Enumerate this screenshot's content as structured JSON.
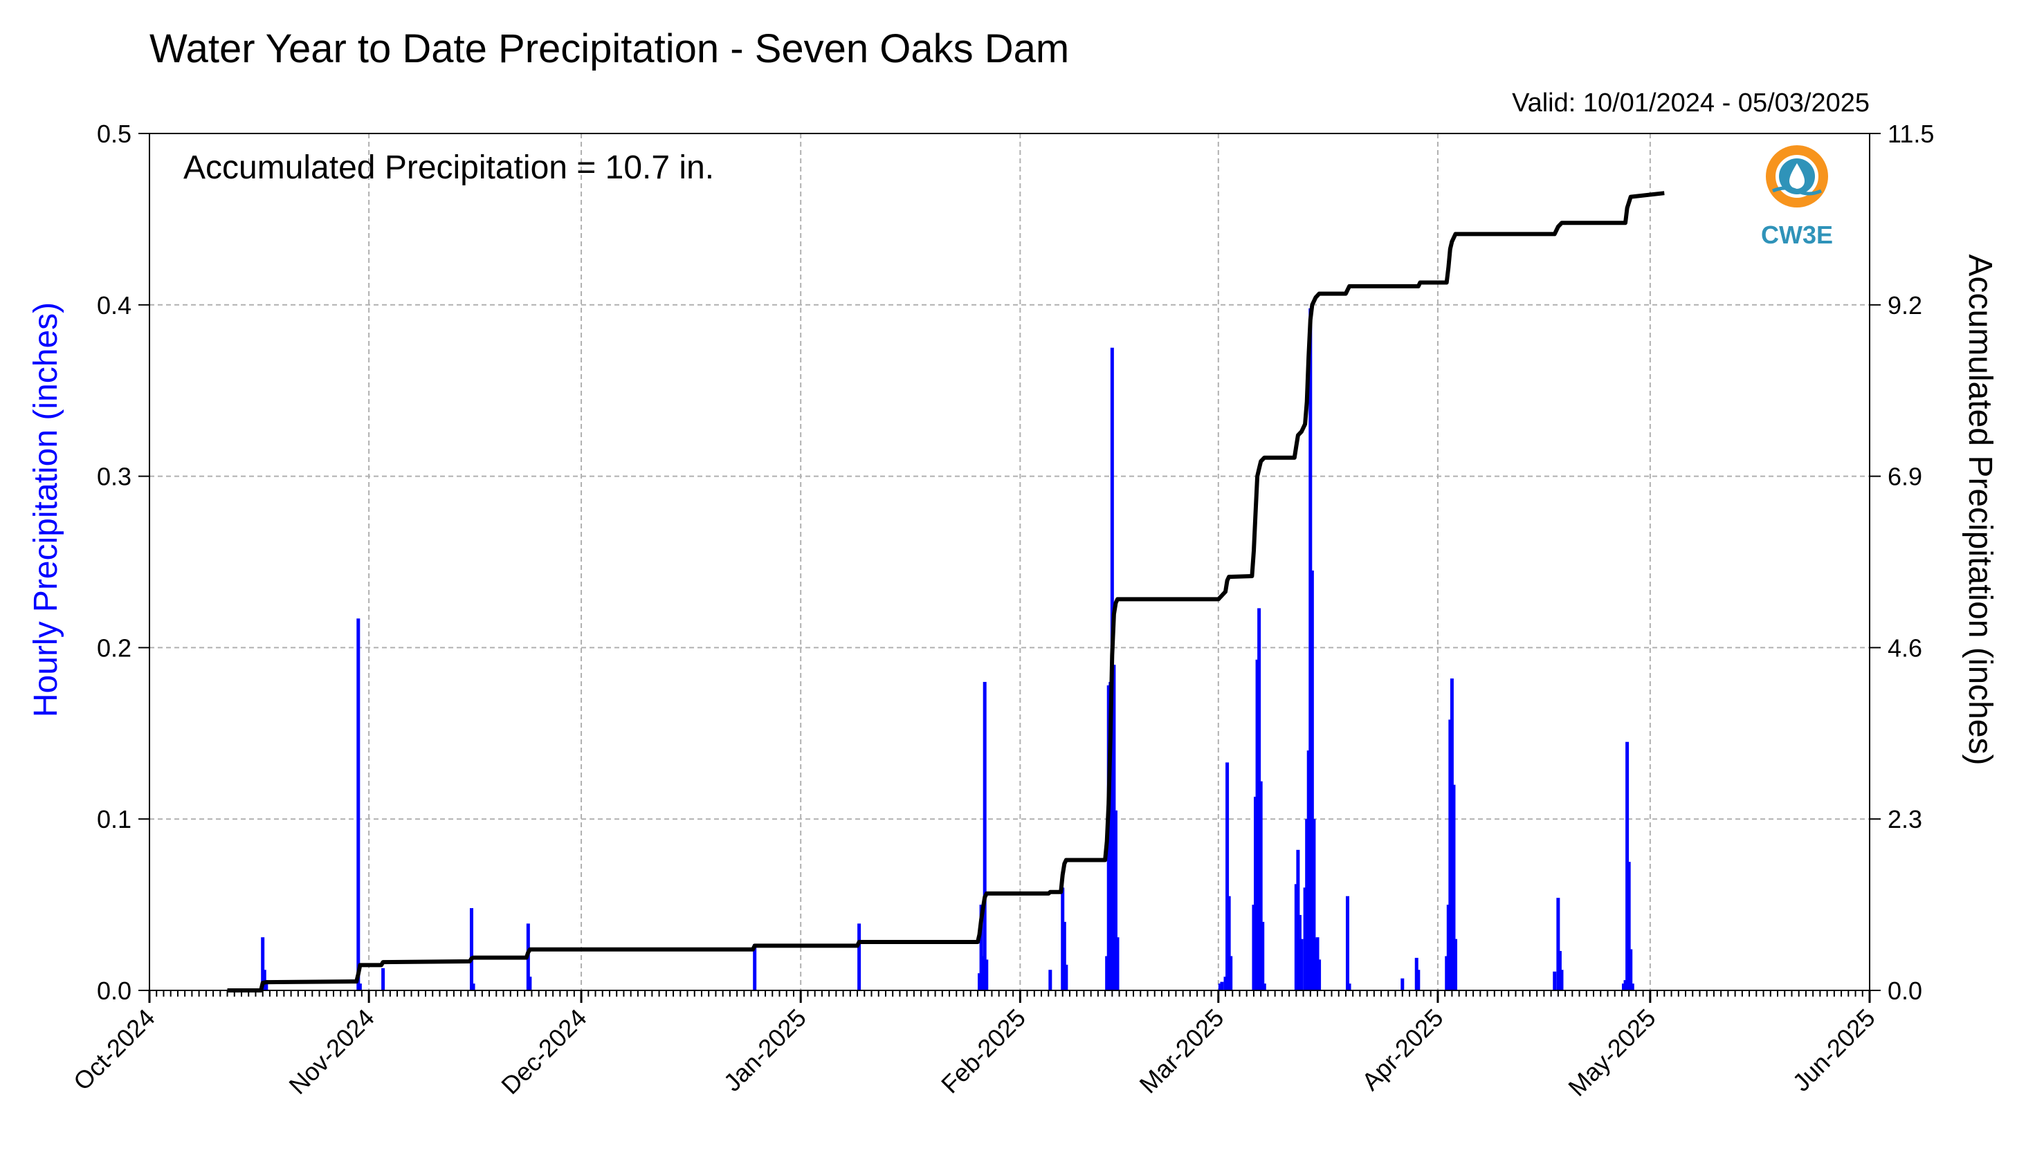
{
  "chart_data": {
    "type": "bar",
    "title": "Water Year to Date Precipitation - Seven Oaks Dam",
    "subtitle": "Valid: 10/01/2024 - 05/03/2025",
    "annotation": "Accumulated Precipitation = 10.7 in.",
    "logo_text": "CW3E",
    "ylabel_left": "Hourly Precipitation (inches)",
    "ylabel_right": "Accumulated Precipitation (inches)",
    "y_left_lim": [
      0,
      0.5
    ],
    "y_left_ticks": [
      "0.0",
      "0.1",
      "0.2",
      "0.3",
      "0.4",
      "0.5"
    ],
    "y_right_lim": [
      0,
      11.5
    ],
    "y_right_ticks": [
      "0.0",
      "2.3",
      "4.6",
      "6.9",
      "9.2",
      "11.5"
    ],
    "x_range": [
      "2024-10-01",
      "2025-06-01"
    ],
    "x_ticks": [
      {
        "date": "2024-10-01",
        "label": "Oct-2024"
      },
      {
        "date": "2024-11-01",
        "label": "Nov-2024"
      },
      {
        "date": "2024-12-01",
        "label": "Dec-2024"
      },
      {
        "date": "2025-01-01",
        "label": "Jan-2025"
      },
      {
        "date": "2025-02-01",
        "label": "Feb-2025"
      },
      {
        "date": "2025-03-01",
        "label": "Mar-2025"
      },
      {
        "date": "2025-04-01",
        "label": "Apr-2025"
      },
      {
        "date": "2025-05-01",
        "label": "May-2025"
      },
      {
        "date": "2025-06-01",
        "label": "Jun-2025"
      }
    ],
    "grid": true,
    "colors": {
      "hourly": "#0000ff",
      "accumulated": "#000000",
      "grid": "#b0b0b0",
      "logo": "#2f93b9",
      "logo_ring": "#f7941d"
    },
    "series": [
      {
        "name": "Hourly Precipitation",
        "axis": "left",
        "type": "bar",
        "points": [
          [
            "2024-10-17T00",
            0.031
          ],
          [
            "2024-10-17T06",
            0.012
          ],
          [
            "2024-10-17T12",
            0.006
          ],
          [
            "2024-10-30T12",
            0.217
          ],
          [
            "2024-10-30T18",
            0.004
          ],
          [
            "2024-11-03T00",
            0.013
          ],
          [
            "2024-11-15T12",
            0.048
          ],
          [
            "2024-11-15T18",
            0.004
          ],
          [
            "2024-11-23T12",
            0.039
          ],
          [
            "2024-11-23T18",
            0.008
          ],
          [
            "2024-12-25T12",
            0.027
          ],
          [
            "2025-01-09T06",
            0.039
          ],
          [
            "2025-01-26T06",
            0.01
          ],
          [
            "2025-01-26T12",
            0.05
          ],
          [
            "2025-01-26T18",
            0.02
          ],
          [
            "2025-01-27T00",
            0.18
          ],
          [
            "2025-01-27T06",
            0.018
          ],
          [
            "2025-02-05T06",
            0.012
          ],
          [
            "2025-02-07T00",
            0.06
          ],
          [
            "2025-02-07T06",
            0.04
          ],
          [
            "2025-02-07T12",
            0.015
          ],
          [
            "2025-02-13T06",
            0.02
          ],
          [
            "2025-02-13T12",
            0.178
          ],
          [
            "2025-02-13T18",
            0.18
          ],
          [
            "2025-02-14T00",
            0.375
          ],
          [
            "2025-02-14T06",
            0.19
          ],
          [
            "2025-02-14T12",
            0.105
          ],
          [
            "2025-02-14T18",
            0.031
          ],
          [
            "2025-03-01T06",
            0.004
          ],
          [
            "2025-03-01T12",
            0.005
          ],
          [
            "2025-03-02T00",
            0.008
          ],
          [
            "2025-03-02T06",
            0.133
          ],
          [
            "2025-03-02T12",
            0.055
          ],
          [
            "2025-03-02T18",
            0.02
          ],
          [
            "2025-03-06T00",
            0.05
          ],
          [
            "2025-03-06T06",
            0.113
          ],
          [
            "2025-03-06T12",
            0.193
          ],
          [
            "2025-03-06T18",
            0.223
          ],
          [
            "2025-03-07T00",
            0.122
          ],
          [
            "2025-03-07T06",
            0.04
          ],
          [
            "2025-03-07T12",
            0.004
          ],
          [
            "2025-03-12T00",
            0.062
          ],
          [
            "2025-03-12T06",
            0.082
          ],
          [
            "2025-03-12T12",
            0.044
          ],
          [
            "2025-03-12T18",
            0.03
          ],
          [
            "2025-03-13T06",
            0.06
          ],
          [
            "2025-03-13T12",
            0.1
          ],
          [
            "2025-03-13T18",
            0.14
          ],
          [
            "2025-03-14T00",
            0.398
          ],
          [
            "2025-03-14T06",
            0.245
          ],
          [
            "2025-03-14T12",
            0.1
          ],
          [
            "2025-03-14T18",
            0.03
          ],
          [
            "2025-03-15T00",
            0.031
          ],
          [
            "2025-03-15T06",
            0.018
          ],
          [
            "2025-03-19T06",
            0.055
          ],
          [
            "2025-03-19T12",
            0.004
          ],
          [
            "2025-03-27T00",
            0.007
          ],
          [
            "2025-03-29T00",
            0.019
          ],
          [
            "2025-03-29T06",
            0.012
          ],
          [
            "2025-04-02T06",
            0.02
          ],
          [
            "2025-04-02T12",
            0.05
          ],
          [
            "2025-04-02T18",
            0.158
          ],
          [
            "2025-04-03T00",
            0.182
          ],
          [
            "2025-04-03T06",
            0.12
          ],
          [
            "2025-04-03T12",
            0.03
          ],
          [
            "2025-04-17T12",
            0.011
          ],
          [
            "2025-04-18T00",
            0.054
          ],
          [
            "2025-04-18T06",
            0.023
          ],
          [
            "2025-04-18T12",
            0.012
          ],
          [
            "2025-04-27T06",
            0.004
          ],
          [
            "2025-04-27T12",
            0.006
          ],
          [
            "2025-04-27T18",
            0.145
          ],
          [
            "2025-04-28T00",
            0.075
          ],
          [
            "2025-04-28T06",
            0.024
          ],
          [
            "2025-04-28T12",
            0.004
          ]
        ]
      },
      {
        "name": "Accumulated Precipitation",
        "axis": "right",
        "type": "line",
        "points": [
          [
            "2024-10-12T00",
            0.0
          ],
          [
            "2024-10-16T18",
            0.0
          ],
          [
            "2024-10-17T00",
            0.1
          ],
          [
            "2024-10-17T12",
            0.11
          ],
          [
            "2024-10-30T06",
            0.12
          ],
          [
            "2024-10-30T12",
            0.22
          ],
          [
            "2024-10-30T18",
            0.34
          ],
          [
            "2024-11-02T18",
            0.34
          ],
          [
            "2024-11-03T00",
            0.38
          ],
          [
            "2024-11-15T06",
            0.39
          ],
          [
            "2024-11-15T12",
            0.43
          ],
          [
            "2024-11-15T18",
            0.44
          ],
          [
            "2024-11-23T06",
            0.44
          ],
          [
            "2024-11-23T12",
            0.51
          ],
          [
            "2024-11-23T18",
            0.55
          ],
          [
            "2024-12-25T06",
            0.55
          ],
          [
            "2024-12-25T12",
            0.6
          ],
          [
            "2025-01-09T00",
            0.6
          ],
          [
            "2025-01-09T06",
            0.65
          ],
          [
            "2025-01-26T00",
            0.65
          ],
          [
            "2025-01-26T06",
            0.75
          ],
          [
            "2025-01-26T12",
            0.95
          ],
          [
            "2025-01-26T18",
            1.1
          ],
          [
            "2025-01-27T00",
            1.25
          ],
          [
            "2025-01-27T06",
            1.3
          ],
          [
            "2025-02-05T00",
            1.3
          ],
          [
            "2025-02-05T06",
            1.32
          ],
          [
            "2025-02-06T18",
            1.32
          ],
          [
            "2025-02-07T00",
            1.55
          ],
          [
            "2025-02-07T06",
            1.7
          ],
          [
            "2025-02-07T12",
            1.75
          ],
          [
            "2025-02-13T00",
            1.75
          ],
          [
            "2025-02-13T06",
            2.0
          ],
          [
            "2025-02-13T12",
            2.5
          ],
          [
            "2025-02-13T18",
            3.4
          ],
          [
            "2025-02-14T00",
            4.5
          ],
          [
            "2025-02-14T06",
            5.05
          ],
          [
            "2025-02-14T12",
            5.2
          ],
          [
            "2025-02-14T18",
            5.25
          ],
          [
            "2025-03-01T00",
            5.25
          ],
          [
            "2025-03-01T12",
            5.3
          ],
          [
            "2025-03-02T00",
            5.35
          ],
          [
            "2025-03-02T06",
            5.5
          ],
          [
            "2025-03-02T12",
            5.55
          ],
          [
            "2025-03-05T18",
            5.56
          ],
          [
            "2025-03-06T00",
            5.9
          ],
          [
            "2025-03-06T06",
            6.4
          ],
          [
            "2025-03-06T12",
            6.9
          ],
          [
            "2025-03-06T18",
            7.0
          ],
          [
            "2025-03-07T00",
            7.1
          ],
          [
            "2025-03-07T12",
            7.15
          ],
          [
            "2025-03-11T18",
            7.15
          ],
          [
            "2025-03-12T00",
            7.3
          ],
          [
            "2025-03-12T06",
            7.45
          ],
          [
            "2025-03-12T18",
            7.5
          ],
          [
            "2025-03-13T06",
            7.6
          ],
          [
            "2025-03-13T12",
            7.9
          ],
          [
            "2025-03-13T18",
            8.5
          ],
          [
            "2025-03-14T00",
            9.0
          ],
          [
            "2025-03-14T06",
            9.2
          ],
          [
            "2025-03-14T18",
            9.3
          ],
          [
            "2025-03-15T06",
            9.35
          ],
          [
            "2025-03-19T00",
            9.35
          ],
          [
            "2025-03-19T12",
            9.45
          ],
          [
            "2025-03-29T06",
            9.45
          ],
          [
            "2025-03-29T12",
            9.5
          ],
          [
            "2025-04-02T06",
            9.5
          ],
          [
            "2025-04-02T12",
            9.7
          ],
          [
            "2025-04-02T18",
            9.95
          ],
          [
            "2025-04-03T00",
            10.05
          ],
          [
            "2025-04-03T12",
            10.15
          ],
          [
            "2025-04-17T12",
            10.15
          ],
          [
            "2025-04-18T00",
            10.25
          ],
          [
            "2025-04-18T12",
            10.3
          ],
          [
            "2025-04-27T12",
            10.3
          ],
          [
            "2025-04-27T18",
            10.5
          ],
          [
            "2025-04-28T06",
            10.65
          ],
          [
            "2025-05-03T00",
            10.7
          ]
        ]
      }
    ]
  }
}
